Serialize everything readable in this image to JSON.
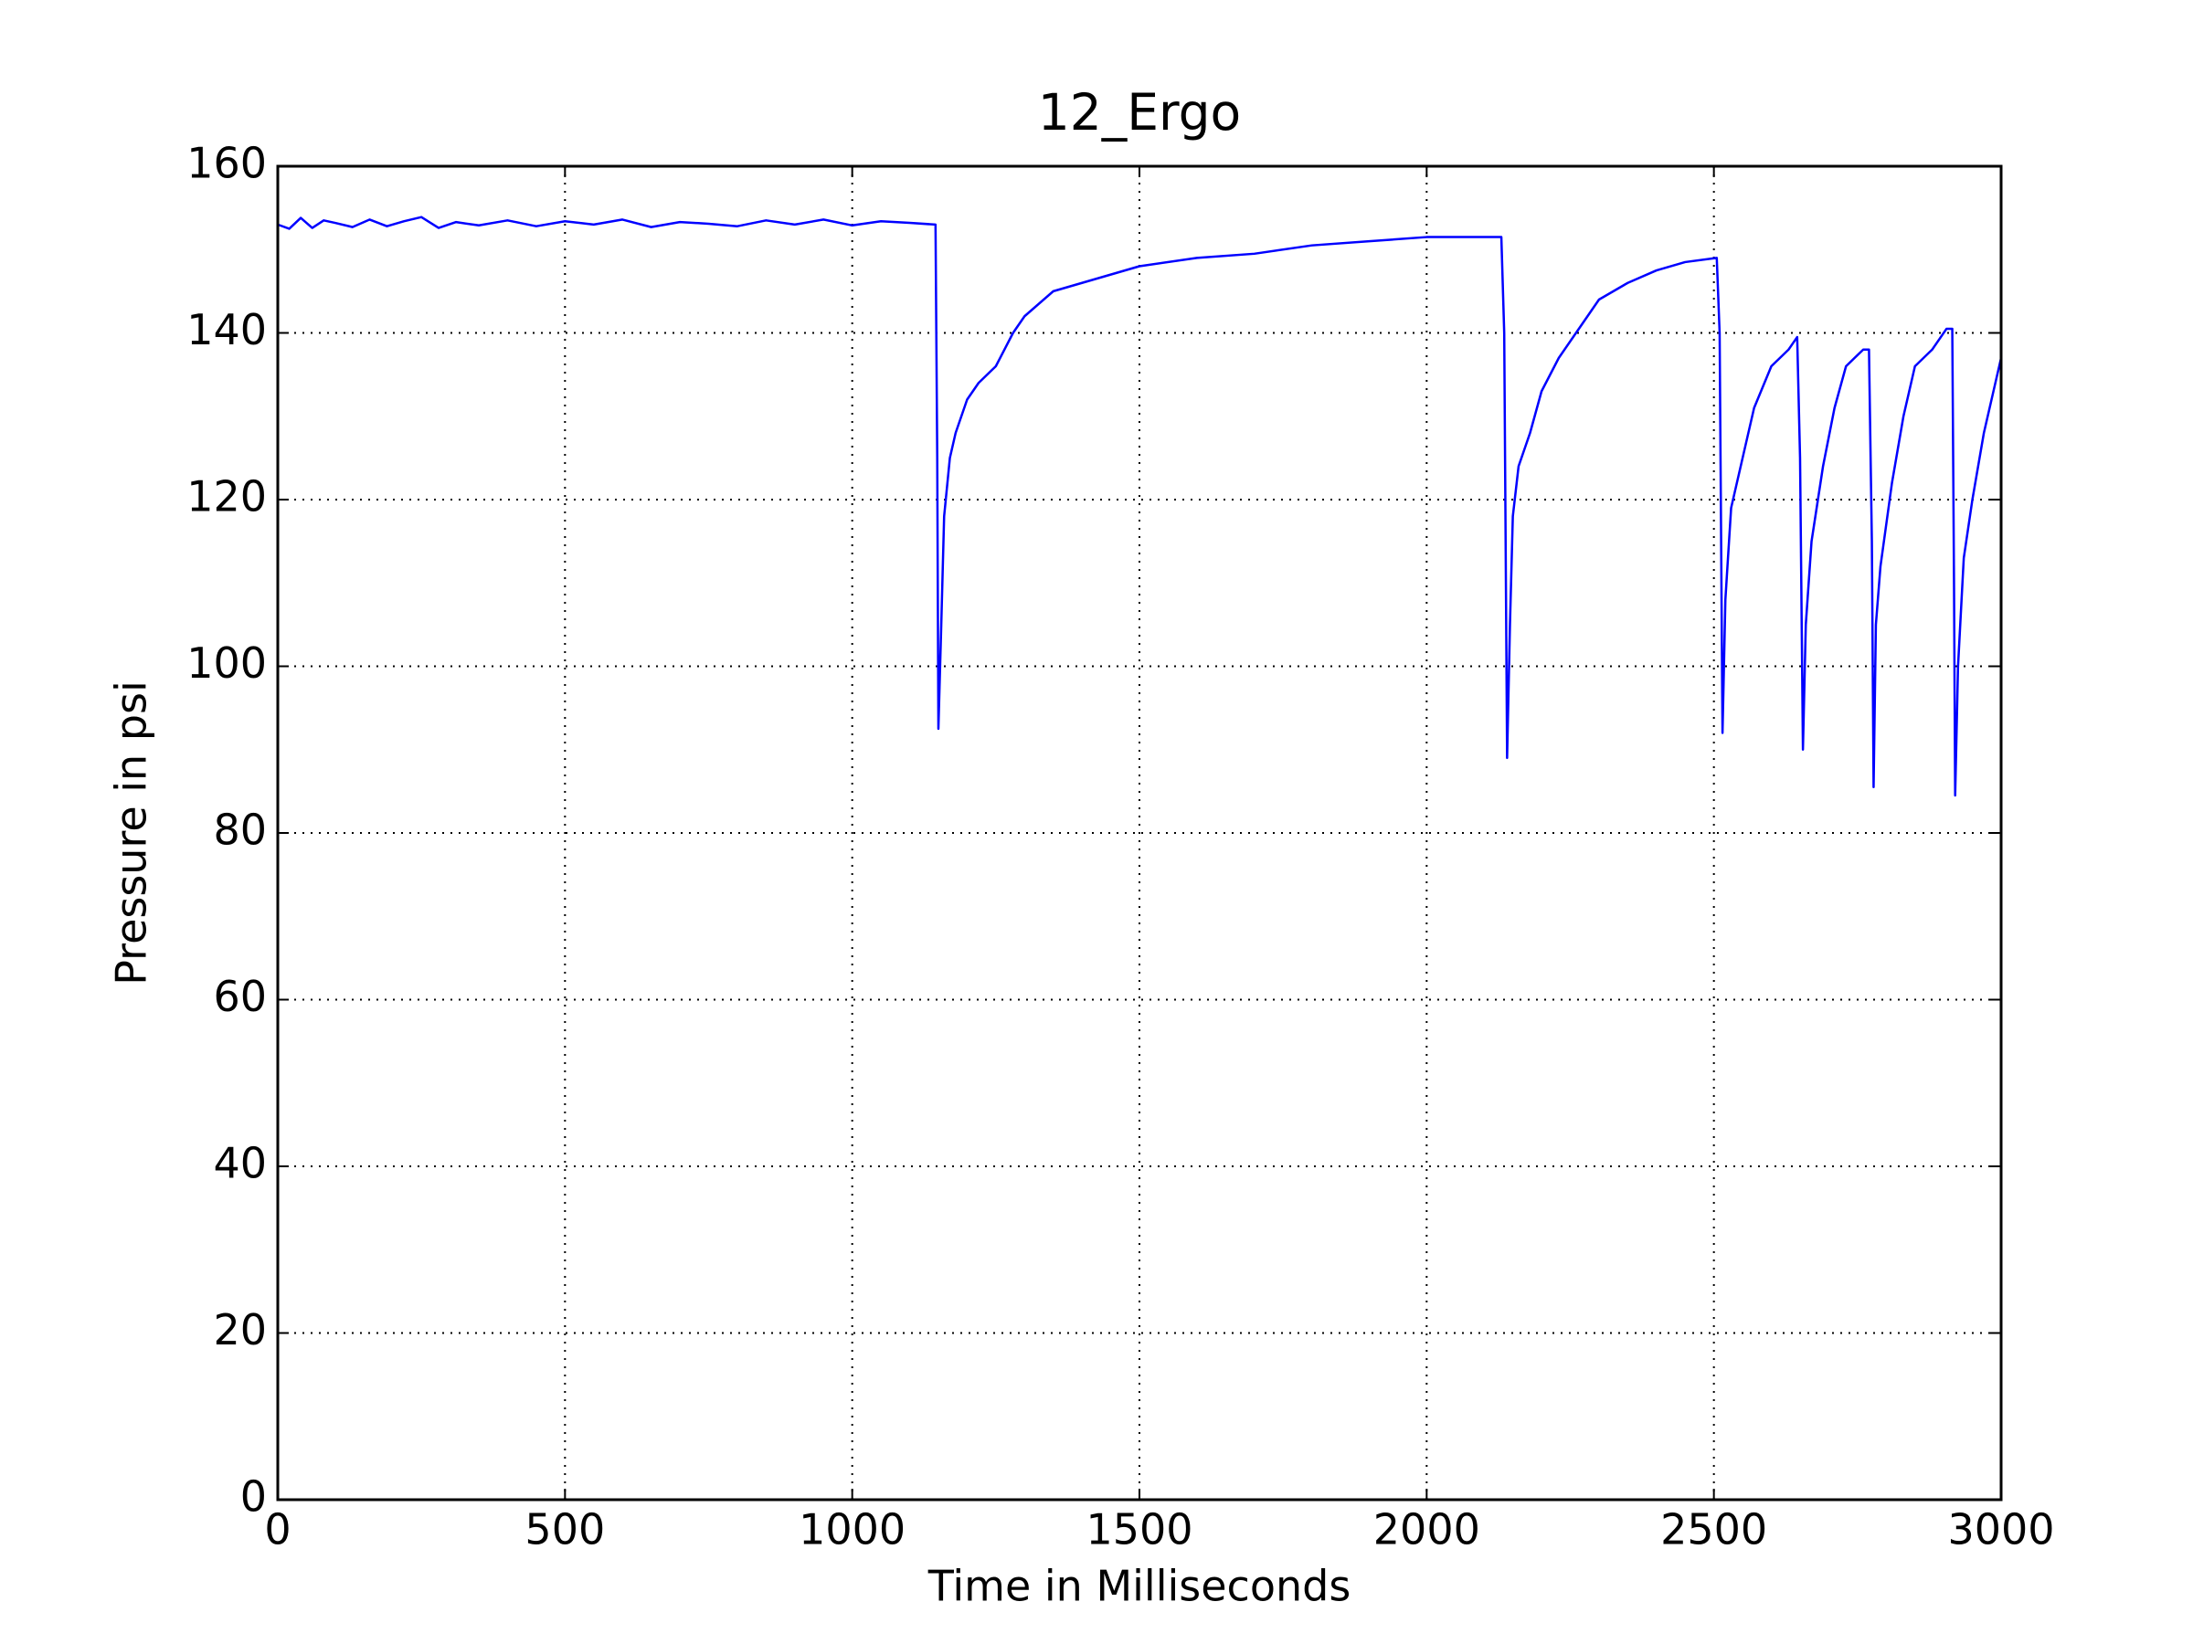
{
  "chart_data": {
    "type": "line",
    "title": "12_Ergo",
    "xlabel": "Time in Milliseconds",
    "ylabel": "Pressure in psi",
    "x": [
      0,
      20,
      40,
      60,
      80,
      100,
      130,
      160,
      190,
      220,
      250,
      280,
      310,
      350,
      400,
      450,
      500,
      550,
      600,
      650,
      700,
      750,
      800,
      850,
      900,
      950,
      1000,
      1050,
      1100,
      1145,
      1148,
      1150,
      1155,
      1160,
      1170,
      1180,
      1200,
      1220,
      1250,
      1280,
      1300,
      1350,
      1400,
      1450,
      1500,
      1600,
      1700,
      1800,
      1900,
      2000,
      2130,
      2135,
      2140,
      2145,
      2150,
      2160,
      2180,
      2200,
      2230,
      2260,
      2300,
      2350,
      2400,
      2450,
      2505,
      2510,
      2515,
      2520,
      2530,
      2550,
      2570,
      2600,
      2630,
      2645,
      2650,
      2655,
      2660,
      2670,
      2690,
      2710,
      2730,
      2760,
      2770,
      2775,
      2778,
      2782,
      2790,
      2810,
      2830,
      2850,
      2880,
      2905,
      2915,
      2918,
      2920,
      2925,
      2935,
      2950,
      2970,
      2990,
      3000
    ],
    "values": [
      153,
      152.5,
      153.8,
      152.6,
      153.5,
      153.2,
      152.7,
      153.6,
      152.8,
      153.4,
      153.9,
      152.6,
      153.3,
      152.9,
      153.5,
      152.8,
      153.4,
      153,
      153.6,
      152.7,
      153.3,
      153.1,
      152.8,
      153.5,
      153,
      153.6,
      152.9,
      153.4,
      153.2,
      153,
      125,
      92.5,
      105,
      118,
      125,
      128,
      132,
      134,
      136,
      140,
      142,
      145,
      146,
      147,
      148,
      149,
      149.5,
      150.5,
      151,
      151.5,
      151.5,
      140,
      89,
      105,
      118,
      124,
      128,
      133,
      137,
      140,
      144,
      146,
      147.5,
      148.5,
      149,
      140,
      92,
      108,
      119,
      125,
      131,
      136,
      138,
      139.5,
      125,
      90,
      105,
      115,
      124,
      131,
      136,
      138,
      138,
      115,
      85.5,
      105,
      112,
      122,
      130,
      136,
      138,
      140.5,
      140.5,
      110,
      84.5,
      100,
      113,
      120,
      128,
      134,
      137
    ],
    "color": "#0000ff",
    "xlim": [
      0,
      3000
    ],
    "xticks": [
      0,
      500,
      1000,
      1500,
      2000,
      2500,
      3000
    ],
    "ylim": [
      0,
      160
    ],
    "yticks": [
      0,
      20,
      40,
      60,
      80,
      100,
      120,
      140,
      160
    ],
    "grid": true
  }
}
